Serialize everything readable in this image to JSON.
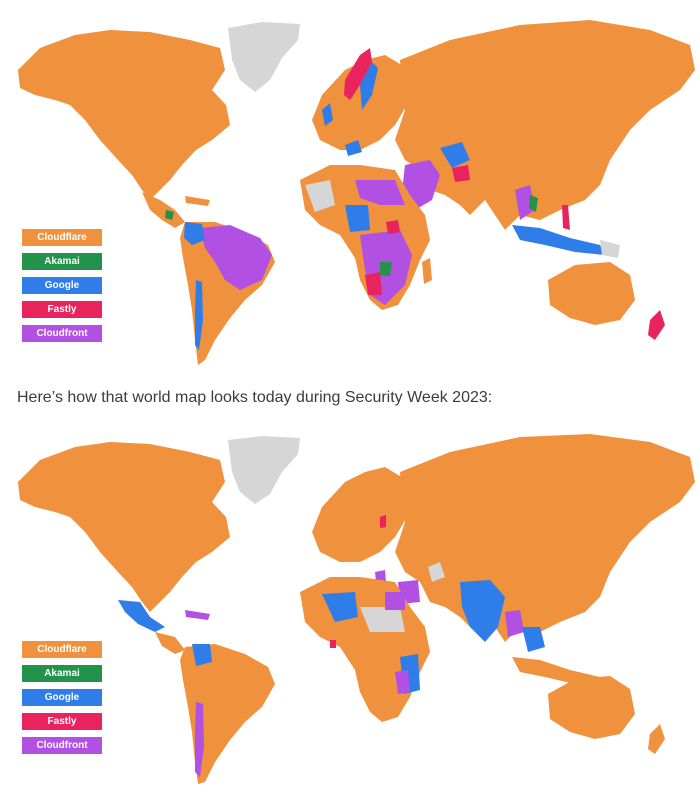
{
  "colors": {
    "cloudflare": "#f0913d",
    "akamai": "#23924a",
    "google": "#2f7de9",
    "fastly": "#e8235d",
    "cloudfront": "#b150e3",
    "unknown": "#d6d6d6"
  },
  "legend": [
    {
      "label": "Cloudflare",
      "color": "#f0913d"
    },
    {
      "label": "Akamai",
      "color": "#23924a"
    },
    {
      "label": "Google",
      "color": "#2f7de9"
    },
    {
      "label": "Fastly",
      "color": "#e8235d"
    },
    {
      "label": "Cloudfront",
      "color": "#b150e3"
    }
  ],
  "caption": "Here’s how that world map looks today during Security Week 2023:"
}
